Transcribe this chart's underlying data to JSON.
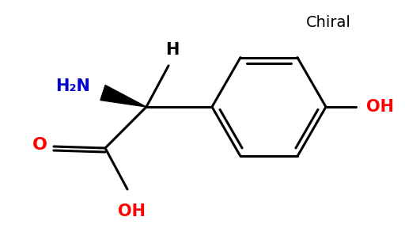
{
  "bg_color": "#ffffff",
  "bond_color": "#000000",
  "nitrogen_color": "#0000cc",
  "oxygen_color": "#ff0000",
  "line_width": 2.2,
  "chiral_label": "Chiral",
  "h2n_label": "H₂N",
  "h_label": "H",
  "o_label": "O",
  "oh_label_acid": "OH",
  "oh_label_ring": "OH"
}
